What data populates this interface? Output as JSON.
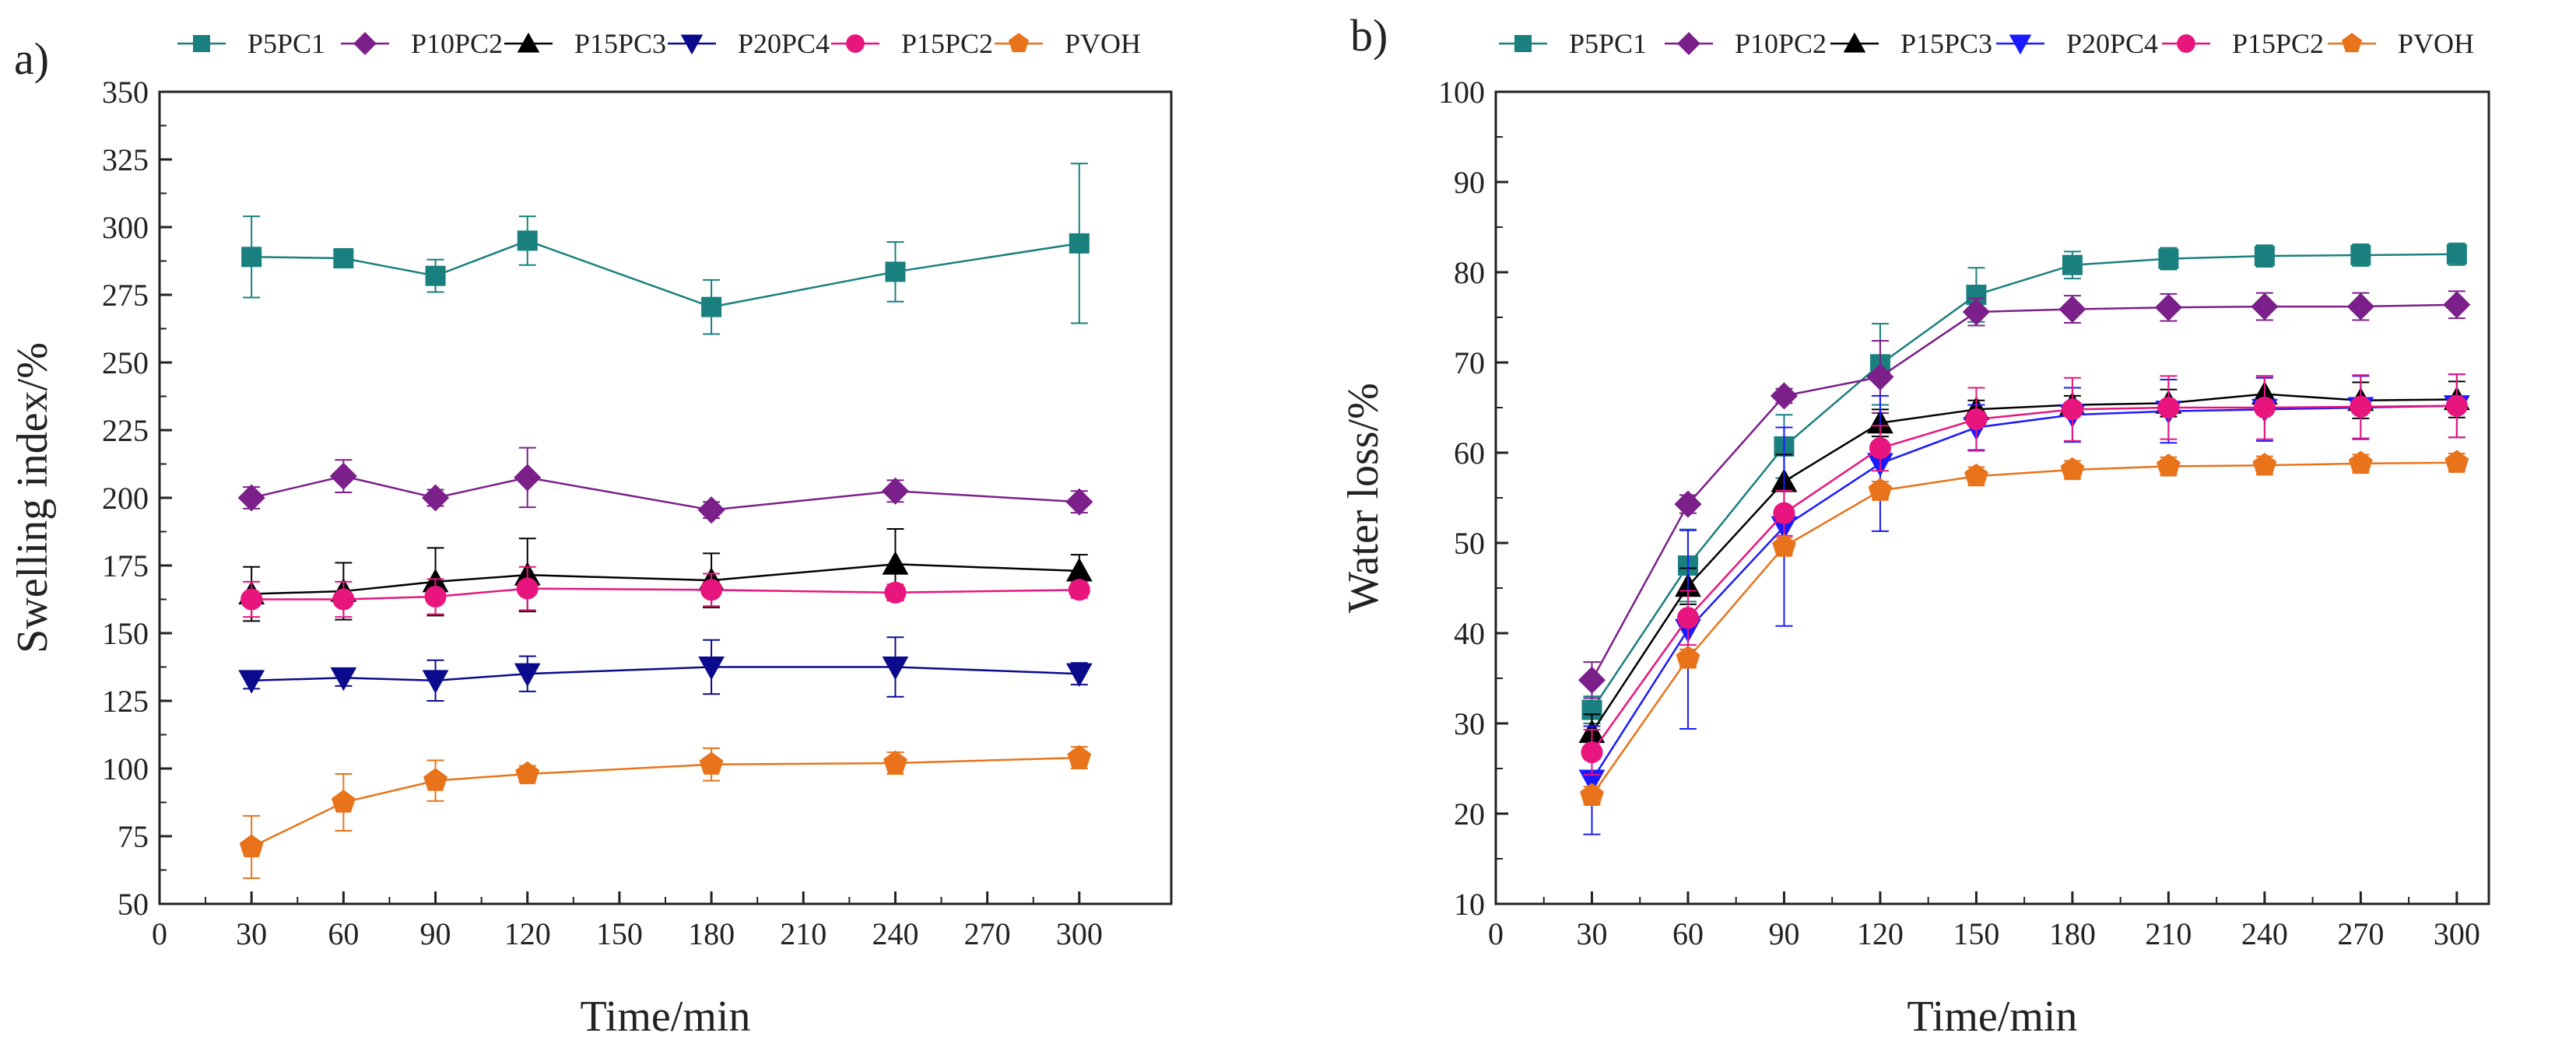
{
  "chart_data": [
    {
      "type": "line",
      "panel_label": "a)",
      "xlabel": "Time/min",
      "ylabel": "Swelling index/%",
      "xlim": [
        0,
        330
      ],
      "ylim": [
        50,
        350
      ],
      "xticks": [
        0,
        30,
        60,
        90,
        120,
        150,
        180,
        210,
        240,
        270,
        300
      ],
      "yticks": [
        50,
        75,
        100,
        125,
        150,
        175,
        200,
        225,
        250,
        275,
        300,
        325,
        350
      ],
      "x": [
        30,
        60,
        90,
        120,
        180,
        240,
        300
      ],
      "series": [
        {
          "name": "P5PC1",
          "marker": "square",
          "color": "#1a7f7f",
          "values": [
            289,
            288.5,
            282,
            295,
            270.5,
            283.5,
            294
          ],
          "errors": [
            15,
            3,
            6,
            9,
            10,
            11,
            29.5
          ]
        },
        {
          "name": "P10PC2",
          "marker": "diamond",
          "color": "#7b1f8a",
          "values": [
            200,
            208,
            200,
            207.5,
            195.5,
            202.5,
            198.5
          ],
          "errors": [
            4,
            6,
            3,
            11,
            3,
            4,
            4
          ]
        },
        {
          "name": "P15PC3",
          "marker": "triangle-up",
          "color": "#000000",
          "values": [
            164.5,
            165.5,
            169,
            171.5,
            169.5,
            175.5,
            173
          ],
          "errors": [
            10,
            10.5,
            12.5,
            13.5,
            10,
            13,
            6
          ]
        },
        {
          "name": "P20PC4",
          "marker": "triangle-down",
          "color": "#0a0a8c",
          "values": [
            132.5,
            133.5,
            132.5,
            135,
            137.5,
            137.5,
            135
          ],
          "errors": [
            3,
            3,
            7.5,
            6.5,
            10,
            11,
            4
          ]
        },
        {
          "name": "P15PC2",
          "marker": "circle",
          "color": "#e8157f",
          "values": [
            162.5,
            162.5,
            163.5,
            166.5,
            166,
            165,
            166
          ],
          "errors": [
            6.5,
            6.5,
            6.5,
            8,
            6,
            3,
            3
          ]
        },
        {
          "name": "PVOH",
          "marker": "pentagon",
          "color": "#e8731a",
          "values": [
            71,
            87.5,
            95.5,
            98,
            101.5,
            102,
            104
          ],
          "errors": [
            11.5,
            10.5,
            7.5,
            3,
            6,
            4,
            4
          ]
        }
      ]
    },
    {
      "type": "line",
      "panel_label": "b)",
      "xlabel": "Time/min",
      "ylabel": "Water loss/%",
      "xlim": [
        0,
        310
      ],
      "ylim": [
        10,
        100
      ],
      "xticks": [
        0,
        30,
        60,
        90,
        120,
        150,
        180,
        210,
        240,
        270,
        300
      ],
      "yticks": [
        10,
        20,
        30,
        40,
        50,
        60,
        70,
        80,
        90,
        100
      ],
      "x": [
        30,
        60,
        90,
        120,
        150,
        180,
        210,
        240,
        270,
        300
      ],
      "series": [
        {
          "name": "P5PC1",
          "marker": "square",
          "color": "#1a7f7f",
          "values": [
            31.5,
            47.5,
            60.7,
            69.8,
            77.5,
            80.8,
            81.5,
            81.8,
            81.9,
            82
          ],
          "errors": [
            1.5,
            4,
            3.5,
            4.5,
            3,
            1.5,
            1.2,
            1.2,
            1.2,
            1.2
          ]
        },
        {
          "name": "P10PC2",
          "marker": "diamond",
          "color": "#7b1f8a",
          "values": [
            34.8,
            54.3,
            66.3,
            68.4,
            75.6,
            75.9,
            76.1,
            76.2,
            76.2,
            76.4
          ],
          "errors": [
            2,
            1,
            0.8,
            4,
            1.5,
            1.5,
            1.5,
            1.5,
            1.5,
            1.5
          ]
        },
        {
          "name": "P15PC3",
          "marker": "triangle-up",
          "color": "#000000",
          "values": [
            29,
            45.2,
            56.8,
            63.3,
            64.8,
            65.3,
            65.5,
            66.5,
            65.8,
            65.9
          ],
          "errors": [
            2,
            2,
            3,
            1.5,
            1,
            1,
            1.5,
            2,
            2,
            2
          ]
        },
        {
          "name": "P20PC4",
          "marker": "triangle-down",
          "color": "#1a1aff",
          "values": [
            23.7,
            40.4,
            51.8,
            58.8,
            62.8,
            64.2,
            64.6,
            64.8,
            65,
            65.2
          ],
          "errors": [
            6,
            11,
            11,
            7.5,
            2.5,
            3,
            3.5,
            3.5,
            3.5,
            3.5
          ]
        },
        {
          "name": "P15PC2",
          "marker": "circle",
          "color": "#e8157f",
          "values": [
            26.8,
            41.7,
            53.3,
            60.5,
            63.7,
            64.8,
            65,
            65,
            65.1,
            65.2
          ],
          "errors": [
            2.5,
            3,
            2.5,
            2.5,
            3.5,
            3.5,
            3.5,
            3.5,
            3.5,
            3.5
          ]
        },
        {
          "name": "PVOH",
          "marker": "pentagon",
          "color": "#e8731a",
          "values": [
            22,
            37.2,
            49.6,
            55.8,
            57.4,
            58.1,
            58.5,
            58.6,
            58.8,
            58.9
          ],
          "errors": [
            1,
            1,
            1,
            1,
            1,
            1,
            1,
            1,
            1,
            1
          ]
        }
      ]
    }
  ]
}
